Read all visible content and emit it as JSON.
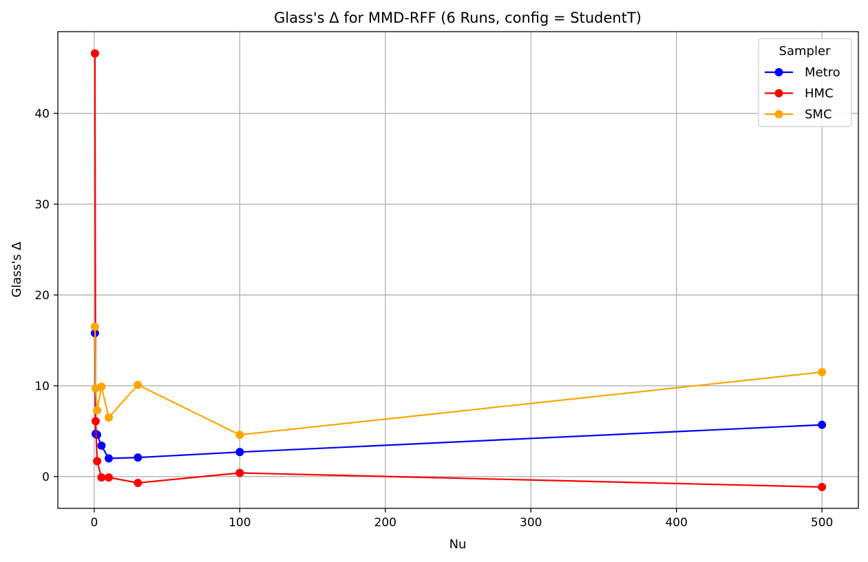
{
  "chart_data": {
    "type": "line",
    "title": "Glass's Δ for MMD-RFF (6 Runs, config = StudentT)",
    "xlabel": "Nu",
    "ylabel": "Glass's Δ",
    "xlim": [
      -25,
      525
    ],
    "ylim": [
      -3.5,
      49
    ],
    "x_ticks": [
      0,
      100,
      200,
      300,
      400,
      500
    ],
    "y_ticks": [
      0,
      10,
      20,
      30,
      40
    ],
    "grid": true,
    "legend": {
      "title": "Sampler",
      "placement": "top-right"
    },
    "series": [
      {
        "name": "Metro",
        "color": "#0000ff",
        "x": [
          0.5,
          1,
          2,
          5,
          10,
          30,
          100,
          500
        ],
        "y": [
          15.8,
          4.7,
          4.6,
          3.4,
          2.0,
          2.1,
          2.7,
          5.7
        ]
      },
      {
        "name": "HMC",
        "color": "#ff0000",
        "x": [
          0.5,
          1,
          2,
          5,
          10,
          30,
          100,
          500
        ],
        "y": [
          46.6,
          6.1,
          1.7,
          -0.1,
          -0.1,
          -0.7,
          0.4,
          -1.15
        ]
      },
      {
        "name": "SMC",
        "color": "#ffa500",
        "x": [
          0.5,
          1,
          2,
          5,
          10,
          30,
          100,
          500
        ],
        "y": [
          16.5,
          9.7,
          7.3,
          9.9,
          6.5,
          10.1,
          4.6,
          11.5
        ]
      }
    ]
  }
}
